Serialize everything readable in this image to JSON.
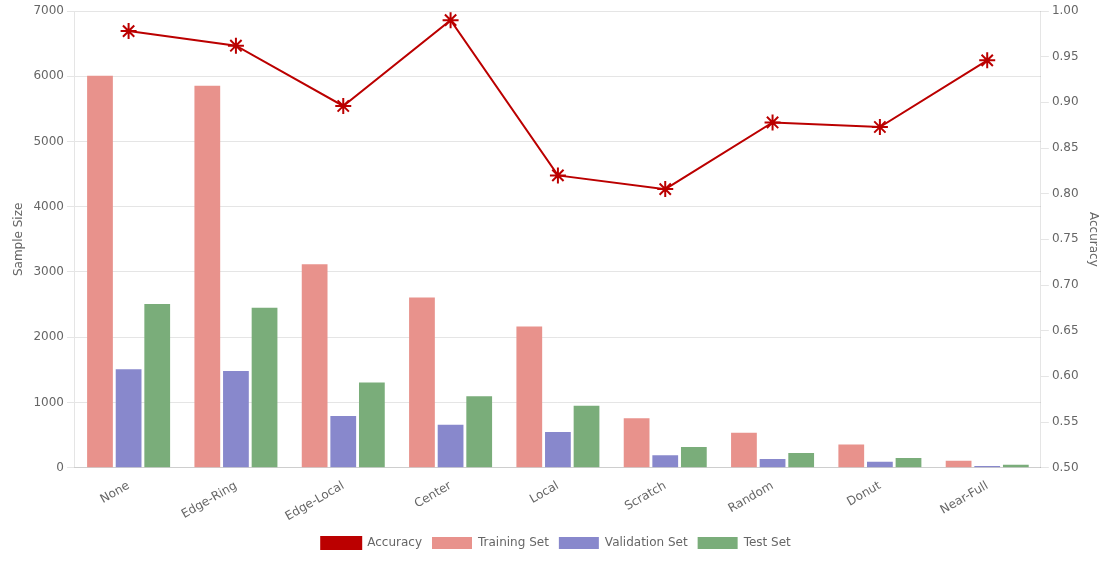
{
  "chart_data": {
    "type": "bar",
    "categories": [
      "None",
      "Edge-Ring",
      "Edge-Local",
      "Center",
      "Local",
      "Scratch",
      "Random",
      "Donut",
      "Near-Full"
    ],
    "series": [
      {
        "name": "Training Set",
        "color": "#e8928c",
        "values": [
          6007,
          5854,
          3118,
          2608,
          2164,
          757,
          536,
          355,
          107
        ]
      },
      {
        "name": "Validation Set",
        "color": "#8888cc",
        "values": [
          1509,
          1481,
          792,
          660,
          548,
          192,
          135,
          90,
          27
        ]
      },
      {
        "name": "Test Set",
        "color": "#7aad7a",
        "values": [
          2509,
          2452,
          1307,
          1094,
          951,
          317,
          224,
          149,
          44
        ]
      },
      {
        "name": "Accuracy",
        "type": "line",
        "axis": "y2",
        "color": "#bb0000",
        "marker": "star",
        "line_style": "solid",
        "values": [
          0.978,
          0.962,
          0.896,
          0.99,
          0.82,
          0.805,
          0.878,
          0.873,
          0.946
        ]
      }
    ],
    "ylabel": "Sample Size",
    "y2label": "Accuracy",
    "ylim": [
      0,
      7000
    ],
    "yticks": [
      0,
      1000,
      2000,
      3000,
      4000,
      5000,
      6000,
      7000
    ],
    "y2lim": [
      0.5,
      1.0
    ],
    "y2ticks": [
      {
        "value": 0.5,
        "label": "0.50"
      },
      0.55,
      {
        "value": 0.6,
        "label": "0.60"
      },
      0.65,
      {
        "value": 0.7,
        "label": "0.70"
      },
      0.75,
      {
        "value": 0.8,
        "label": "0.80"
      },
      0.85,
      {
        "value": 0.9,
        "label": "0.90"
      },
      0.95,
      {
        "value": 1.0,
        "label": "1.00"
      }
    ],
    "grid": true,
    "legend": "bottom"
  }
}
